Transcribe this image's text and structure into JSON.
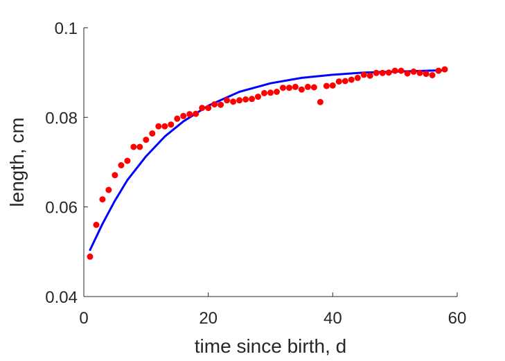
{
  "chart_data": {
    "type": "scatter",
    "title": "",
    "xlabel": "time since birth, d",
    "ylabel": "length, cm",
    "xlim": [
      0,
      60
    ],
    "ylim": [
      0.04,
      0.1
    ],
    "xticks": [
      0,
      20,
      40,
      60
    ],
    "xtick_labels": [
      "0",
      "20",
      "40",
      "60"
    ],
    "yticks": [
      0.04,
      0.06,
      0.08,
      0.1
    ],
    "ytick_labels": [
      "0.04",
      "0.06",
      "0.08",
      "0.1"
    ],
    "grid": false,
    "legend": "none",
    "series": [
      {
        "type": "scatter",
        "color": "#ff0000",
        "points": [
          [
            1,
            0.0489
          ],
          [
            2,
            0.056
          ],
          [
            3,
            0.0617
          ],
          [
            4,
            0.0638
          ],
          [
            5,
            0.0671
          ],
          [
            6,
            0.0693
          ],
          [
            7,
            0.0703
          ],
          [
            8,
            0.0734
          ],
          [
            9,
            0.0734
          ],
          [
            10,
            0.075
          ],
          [
            11,
            0.0764
          ],
          [
            12,
            0.078
          ],
          [
            13,
            0.078
          ],
          [
            14,
            0.0784
          ],
          [
            15,
            0.0797
          ],
          [
            16,
            0.0803
          ],
          [
            17,
            0.0807
          ],
          [
            18,
            0.0808
          ],
          [
            19,
            0.0821
          ],
          [
            20,
            0.0821
          ],
          [
            21,
            0.0829
          ],
          [
            22,
            0.0828
          ],
          [
            23,
            0.0838
          ],
          [
            24,
            0.0835
          ],
          [
            25,
            0.0838
          ],
          [
            26,
            0.084
          ],
          [
            27,
            0.0841
          ],
          [
            28,
            0.0846
          ],
          [
            29,
            0.0854
          ],
          [
            30,
            0.0855
          ],
          [
            31,
            0.0857
          ],
          [
            32,
            0.0866
          ],
          [
            33,
            0.0866
          ],
          [
            34,
            0.0868
          ],
          [
            35,
            0.0862
          ],
          [
            36,
            0.0868
          ],
          [
            37,
            0.0867
          ],
          [
            38,
            0.0834
          ],
          [
            39,
            0.087
          ],
          [
            40,
            0.0871
          ],
          [
            41,
            0.088
          ],
          [
            42,
            0.0881
          ],
          [
            43,
            0.0884
          ],
          [
            44,
            0.0888
          ],
          [
            45,
            0.0895
          ],
          [
            46,
            0.0893
          ],
          [
            47,
            0.0899
          ],
          [
            48,
            0.0899
          ],
          [
            49,
            0.09
          ],
          [
            50,
            0.0904
          ],
          [
            51,
            0.0904
          ],
          [
            52,
            0.0898
          ],
          [
            53,
            0.0902
          ],
          [
            54,
            0.0899
          ],
          [
            55,
            0.0897
          ],
          [
            56,
            0.0894
          ],
          [
            57,
            0.0904
          ],
          [
            58,
            0.0907
          ]
        ]
      },
      {
        "type": "line",
        "color": "#0000ff",
        "points": [
          [
            1,
            0.0504
          ],
          [
            3,
            0.0562
          ],
          [
            5,
            0.0614
          ],
          [
            7,
            0.066
          ],
          [
            10,
            0.0713
          ],
          [
            13,
            0.0757
          ],
          [
            16,
            0.0791
          ],
          [
            20,
            0.0826
          ],
          [
            25,
            0.0857
          ],
          [
            30,
            0.0876
          ],
          [
            35,
            0.0888
          ],
          [
            40,
            0.0895
          ],
          [
            45,
            0.09
          ],
          [
            50,
            0.0902
          ],
          [
            55,
            0.0904
          ],
          [
            58,
            0.0905
          ]
        ]
      }
    ]
  }
}
